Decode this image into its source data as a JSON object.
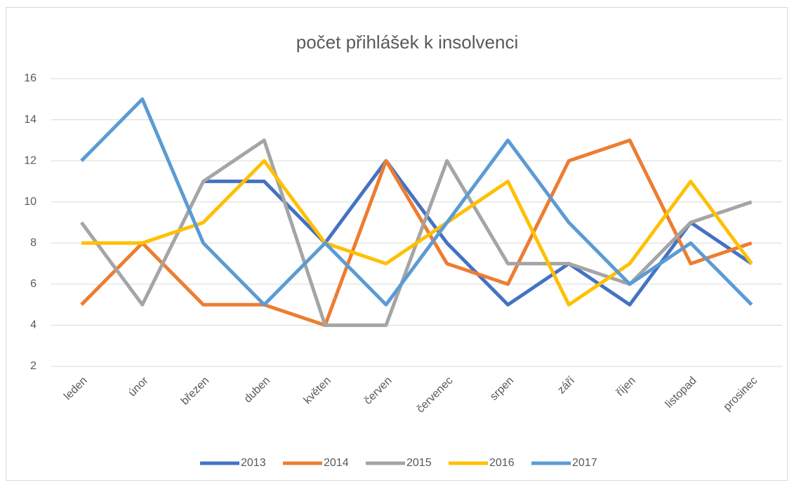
{
  "chart_data": {
    "type": "line",
    "title": "počet přihlášek k insolvenci",
    "categories": [
      "leden",
      "únor",
      "březen",
      "duben",
      "květen",
      "červen",
      "červenec",
      "srpen",
      "září",
      "říjen",
      "listopad",
      "prosinec"
    ],
    "series": [
      {
        "name": "2013",
        "color": "#4472c4",
        "values": [
          null,
          null,
          11,
          11,
          8,
          12,
          8,
          5,
          7,
          5,
          9,
          7
        ]
      },
      {
        "name": "2014",
        "color": "#ed7d31",
        "values": [
          5,
          8,
          5,
          5,
          4,
          12,
          7,
          6,
          12,
          13,
          7,
          8
        ]
      },
      {
        "name": "2015",
        "color": "#a5a5a5",
        "values": [
          9,
          5,
          11,
          13,
          4,
          4,
          12,
          7,
          7,
          6,
          9,
          10
        ]
      },
      {
        "name": "2016",
        "color": "#ffc000",
        "values": [
          8,
          8,
          9,
          12,
          8,
          7,
          9,
          11,
          5,
          7,
          11,
          7
        ]
      },
      {
        "name": "2017",
        "color": "#5b9bd5",
        "values": [
          12,
          15,
          8,
          5,
          8,
          5,
          9,
          13,
          9,
          6,
          8,
          5
        ]
      }
    ],
    "ylim": [
      2,
      16
    ],
    "yticks": [
      2,
      4,
      6,
      8,
      10,
      12,
      14,
      16
    ],
    "grid": true,
    "legend": "bottom"
  }
}
